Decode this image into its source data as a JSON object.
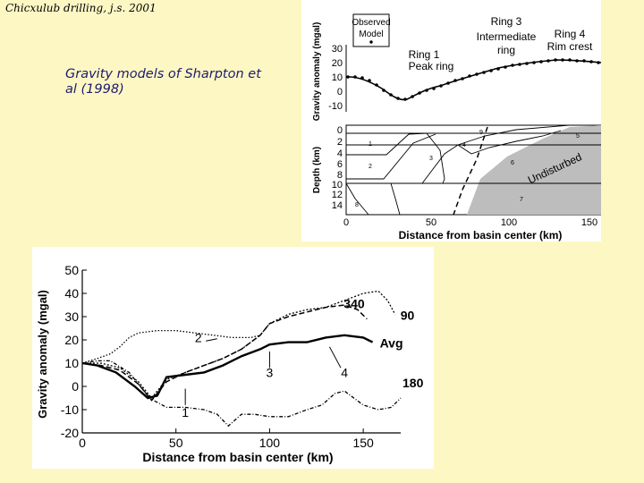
{
  "slide": {
    "title": "Chicxulub drilling, j.s. 2001",
    "caption": "Gravity models of Sharpton et al (1998)"
  },
  "top_figure": {
    "legend": {
      "observed": "Observed",
      "model": "Model"
    },
    "ring_labels": {
      "ring1": [
        "Ring 1",
        "Peak ring"
      ],
      "ring3": [
        "Ring 3",
        "Intermediate",
        "ring"
      ],
      "ring4": [
        "Ring 4",
        "Rim crest"
      ]
    },
    "gravity_axis": {
      "label": "Gravity anomaly (mgal)",
      "ticks": [
        "30",
        "20",
        "10",
        "0",
        "-10"
      ]
    },
    "depth_axis": {
      "label": "Depth (km)",
      "ticks": [
        "0",
        "2",
        "4",
        "6",
        "8",
        "10",
        "12",
        "14"
      ]
    },
    "x_axis": {
      "label": "Distance from basin center (km)",
      "ticks": [
        "0",
        "50",
        "100",
        "150"
      ]
    },
    "units": [
      "1",
      "2",
      "3",
      "4",
      "5",
      "6",
      "7",
      "8",
      "9"
    ],
    "undisturbed_label": "Undisturbed",
    "colors": {
      "basement": "#bdbdbd"
    }
  },
  "chart_data": {
    "type": "line",
    "title": "",
    "xlabel": "Distance from basin center (km)",
    "ylabel": "Gravity anomaly (mgal)",
    "xlim": [
      0,
      170
    ],
    "ylim": [
      -20,
      50
    ],
    "xticks": [
      "0",
      "50",
      "100",
      "150"
    ],
    "yticks": [
      "50",
      "40",
      "30",
      "20",
      "10",
      "0",
      "-10",
      "-20"
    ],
    "series": [
      {
        "name": "90",
        "x": [
          0,
          10,
          20,
          30,
          37,
          45,
          55,
          65,
          75,
          85,
          95,
          100,
          110,
          120,
          130,
          140,
          150,
          158,
          163,
          167
        ],
        "y": [
          10,
          10,
          8,
          2,
          -5,
          3,
          6,
          9,
          12,
          16,
          22,
          27,
          31,
          33,
          34,
          37,
          40,
          41,
          37,
          31
        ]
      },
      {
        "name": "340",
        "x": [
          0,
          10,
          20,
          30,
          37,
          45,
          55,
          65,
          75,
          85,
          95,
          100,
          110,
          120,
          130,
          140,
          147,
          152
        ],
        "y": [
          10,
          9,
          7,
          1,
          -6,
          2,
          6,
          9,
          12,
          16,
          22,
          27,
          30,
          32,
          34,
          35,
          33,
          29
        ]
      },
      {
        "name": "Avg",
        "x": [
          0,
          8,
          18,
          28,
          35,
          40,
          45,
          55,
          65,
          75,
          85,
          95,
          100,
          110,
          120,
          130,
          140,
          150,
          155
        ],
        "y": [
          10,
          9,
          6,
          0,
          -5,
          -4,
          4,
          5,
          6,
          9,
          13,
          16,
          18,
          19,
          19,
          21,
          22,
          21,
          19
        ]
      },
      {
        "name": "180",
        "x": [
          0,
          8,
          15,
          25,
          33,
          38,
          45,
          55,
          65,
          72,
          78,
          85,
          92,
          100,
          110,
          120,
          128,
          135,
          140,
          145,
          150,
          158,
          165,
          170
        ],
        "y": [
          10,
          11,
          11,
          6,
          -2,
          -6,
          -9,
          -9,
          -10,
          -12,
          -17,
          -12,
          -12,
          -13,
          -13,
          -10,
          -8,
          -3,
          -2,
          -5,
          -8,
          -10,
          -9,
          -5
        ]
      },
      {
        "name": "",
        "x": [
          0,
          8,
          15,
          20,
          25,
          30,
          40,
          50,
          60,
          70,
          80,
          90,
          95
        ],
        "y": [
          10,
          12,
          14,
          17,
          21,
          23,
          24,
          24,
          23,
          22,
          21,
          21,
          22
        ]
      }
    ],
    "annotations": [
      {
        "text": "2",
        "x": 62,
        "y": 19
      },
      {
        "text": "3",
        "x": 100,
        "y": 4
      },
      {
        "text": "4",
        "x": 140,
        "y": 4
      },
      {
        "text": "1",
        "x": 55,
        "y": -13
      }
    ]
  }
}
